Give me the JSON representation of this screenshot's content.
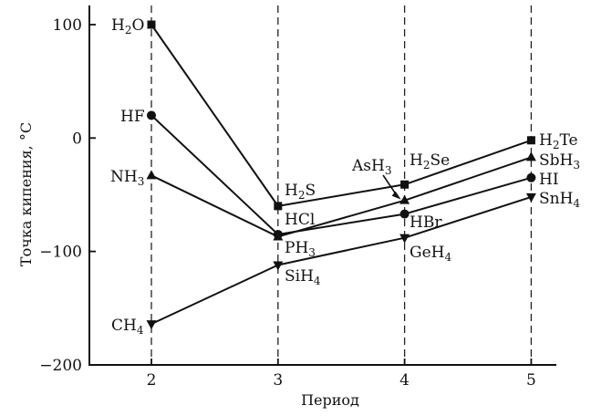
{
  "chart_data": {
    "type": "line",
    "xlabel": "Период",
    "ylabel": "Точка кипения, °C",
    "x": [
      2,
      3,
      4,
      5
    ],
    "xlim": [
      1.5,
      5.2
    ],
    "ylim": [
      -200,
      100
    ],
    "xticks": [
      "2",
      "3",
      "4",
      "5"
    ],
    "yticks": [
      "100",
      "0",
      "−100",
      "−200"
    ],
    "ytick_values": [
      100,
      0,
      -100,
      -200
    ],
    "grid": "vertical dashed lines at x = 2, 3, 4, 5",
    "series": [
      {
        "marker": "square",
        "values": [
          100,
          -60,
          -41,
          -2
        ],
        "labels": [
          {
            "base": "H",
            "sub": "2",
            "rest": "O"
          },
          {
            "base": "H",
            "sub": "2",
            "rest": "S"
          },
          {
            "base": "H",
            "sub": "2",
            "rest": "Se"
          },
          {
            "base": "H",
            "sub": "2",
            "rest": "Te"
          }
        ]
      },
      {
        "marker": "circle",
        "values": [
          20,
          -85,
          -67,
          -35
        ],
        "labels": [
          {
            "base": "HF",
            "sub": "",
            "rest": ""
          },
          {
            "base": "HCl",
            "sub": "",
            "rest": ""
          },
          {
            "base": "HBr",
            "sub": "",
            "rest": ""
          },
          {
            "base": "HI",
            "sub": "",
            "rest": ""
          }
        ]
      },
      {
        "marker": "triangle-up",
        "values": [
          -33,
          -87,
          -55,
          -17
        ],
        "labels": [
          {
            "base": "NH",
            "sub": "3",
            "rest": ""
          },
          {
            "base": "PH",
            "sub": "3",
            "rest": ""
          },
          {
            "base": "AsH",
            "sub": "3",
            "rest": ""
          },
          {
            "base": "SbH",
            "sub": "3",
            "rest": ""
          }
        ]
      },
      {
        "marker": "triangle-down",
        "values": [
          -164,
          -112,
          -88,
          -52
        ],
        "labels": [
          {
            "base": "CH",
            "sub": "4",
            "rest": ""
          },
          {
            "base": "SiH",
            "sub": "4",
            "rest": ""
          },
          {
            "base": "GeH",
            "sub": "4",
            "rest": ""
          },
          {
            "base": "SnH",
            "sub": "4",
            "rest": ""
          }
        ]
      }
    ]
  }
}
